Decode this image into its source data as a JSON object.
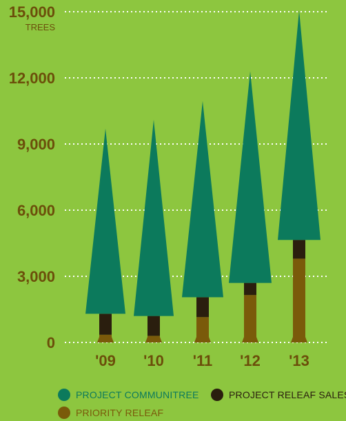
{
  "chart_data": {
    "type": "bar",
    "ylabel_unit": "TREES",
    "categories": [
      "'09",
      "'10",
      "'11",
      "'12",
      "'13"
    ],
    "series": [
      {
        "name": "PRIORITY RELEAF",
        "values": [
          350,
          300,
          1150,
          2150,
          3800
        ]
      },
      {
        "name": "PROJECT RELEAF SALES",
        "values": [
          950,
          900,
          900,
          550,
          850
        ]
      },
      {
        "name": "PROJECT COMMUNITREE",
        "values": [
          8400,
          8900,
          8900,
          9600,
          10400
        ]
      }
    ],
    "yticks": [
      0,
      3000,
      6000,
      9000,
      12000,
      15000
    ],
    "ytick_labels": [
      "0",
      "3,000",
      "6,000",
      "9,000",
      "12,000",
      "15,000"
    ],
    "ylim": [
      0,
      15000
    ],
    "grid": true,
    "legend_position": "bottom"
  },
  "legend": [
    {
      "label": "PROJECT COMMUNITREE",
      "color": "#0c7a5c",
      "text_color": "#0c7a5c"
    },
    {
      "label": "PROJECT RELEAF SALES",
      "color": "#2a1e0e",
      "text_color": "#2a1e0e"
    },
    {
      "label": "PRIORITY RELEAF",
      "color": "#7a5a0a",
      "text_color": "#7a5a0a"
    }
  ],
  "colors": {
    "background": "#8dc63f",
    "canopy": "#0c7a5c",
    "trunk_dark": "#2a1e0e",
    "trunk_brown": "#7a5a0a",
    "axis_text": "#6b4e0a",
    "grid": "#ffffff"
  }
}
